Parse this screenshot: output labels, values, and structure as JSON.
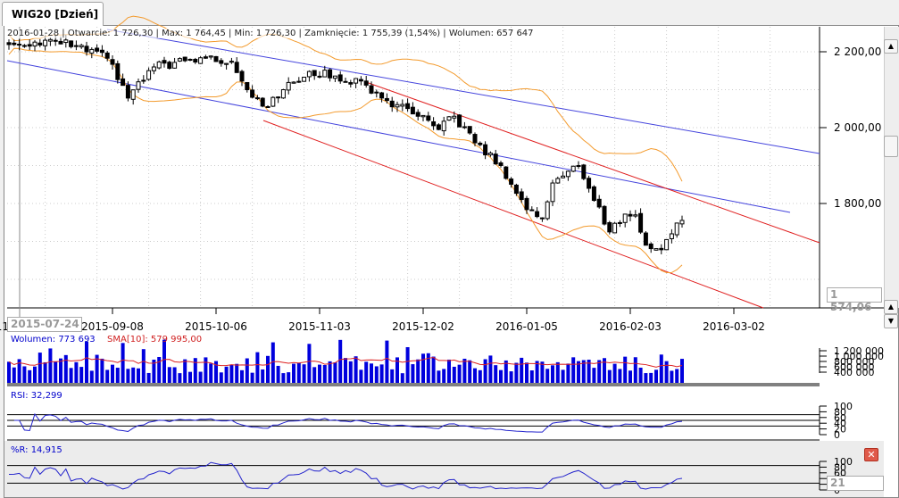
{
  "tab": {
    "title": "WIG20 [Dzień]"
  },
  "info": "2016-01-28 | Otwarcie: 1 726,30 | Max: 1 764,45 | Min: 1 726,30 | Zamknięcie: 1 755,39 (1,54%)  | Wolumen: 657 647",
  "price_axis": {
    "ticks": [
      {
        "v": 2200,
        "label": "2 200,00"
      },
      {
        "v": 2000,
        "label": "2 000,00"
      },
      {
        "v": 1800,
        "label": "1 800,00"
      }
    ],
    "current": "1 574,06"
  },
  "date_axis": {
    "cursor": "2015-07-24",
    "ticks": [
      {
        "i": -3,
        "label": "08-11"
      },
      {
        "i": 20,
        "label": "2015-09-08"
      },
      {
        "i": 40,
        "label": "2015-10-06"
      },
      {
        "i": 60,
        "label": "2015-11-03"
      },
      {
        "i": 80,
        "label": "2015-12-02"
      },
      {
        "i": 100,
        "label": "2016-01-05"
      },
      {
        "i": 120,
        "label": "2016-02-03"
      },
      {
        "i": 140,
        "label": "2016-03-02"
      }
    ]
  },
  "volume": {
    "label": "Wolumen: 773 693",
    "sma_label": "SMA[10]: 579 995,00",
    "ticks": [
      "1 200 000",
      "1 000 000",
      "800 000",
      "600 000",
      "400 000"
    ],
    "color": "#0000dd",
    "sma_color": "#dd2222"
  },
  "rsi": {
    "label": "RSI: 32,299",
    "ticks": [
      "100",
      "80",
      "60",
      "40",
      "20",
      "0"
    ]
  },
  "wr": {
    "label": "%R: 14,915",
    "ticks": [
      "100",
      "80",
      "60",
      "40",
      "20",
      "0"
    ],
    "period": "21"
  },
  "chart_data": {
    "type": "candlestick",
    "symbol": "WIG20",
    "anchors": [
      [
        0,
        2219
      ],
      [
        9,
        2230
      ],
      [
        19,
        2183
      ],
      [
        23,
        2078
      ],
      [
        28,
        2160
      ],
      [
        38,
        2183
      ],
      [
        43,
        2175
      ],
      [
        46,
        2100
      ],
      [
        50,
        2054
      ],
      [
        53,
        2100
      ],
      [
        58,
        2148
      ],
      [
        63,
        2136
      ],
      [
        69,
        2112
      ],
      [
        72,
        2078
      ],
      [
        79,
        2030
      ],
      [
        83,
        1995
      ],
      [
        86,
        2030
      ],
      [
        90,
        1960
      ],
      [
        95,
        1900
      ],
      [
        100,
        1784
      ],
      [
        103,
        1760
      ],
      [
        105,
        1854
      ],
      [
        110,
        1900
      ],
      [
        112,
        1840
      ],
      [
        116,
        1725
      ],
      [
        119,
        1772
      ],
      [
        121,
        1770
      ],
      [
        123,
        1690
      ],
      [
        126,
        1678
      ],
      [
        128,
        1720
      ],
      [
        130,
        1755.39
      ]
    ],
    "ylim": [
      1574,
      2260
    ]
  }
}
